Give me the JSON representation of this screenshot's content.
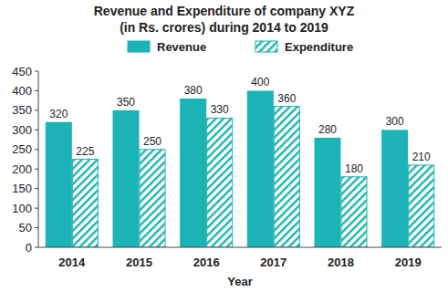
{
  "chart_data": {
    "type": "bar",
    "title": "Revenue and Expenditure of company XYZ",
    "subtitle": "(in Rs. crores) during 2014 to 2019",
    "x_label": "Year",
    "categories": [
      "2014",
      "2015",
      "2016",
      "2017",
      "2018",
      "2019"
    ],
    "series": [
      {
        "name": "Revenue",
        "color": "#1bb3b5",
        "values": [
          320,
          350,
          380,
          400,
          280,
          300
        ]
      },
      {
        "name": "Expenditure",
        "color": "#1bb3b5",
        "values": [
          225,
          250,
          330,
          360,
          180,
          210
        ]
      }
    ],
    "ylim": [
      0,
      450
    ],
    "yticks": [
      0,
      50,
      100,
      150,
      200,
      250,
      300,
      350,
      400,
      450
    ],
    "grid": false,
    "legend": "top",
    "data_labels": true
  }
}
